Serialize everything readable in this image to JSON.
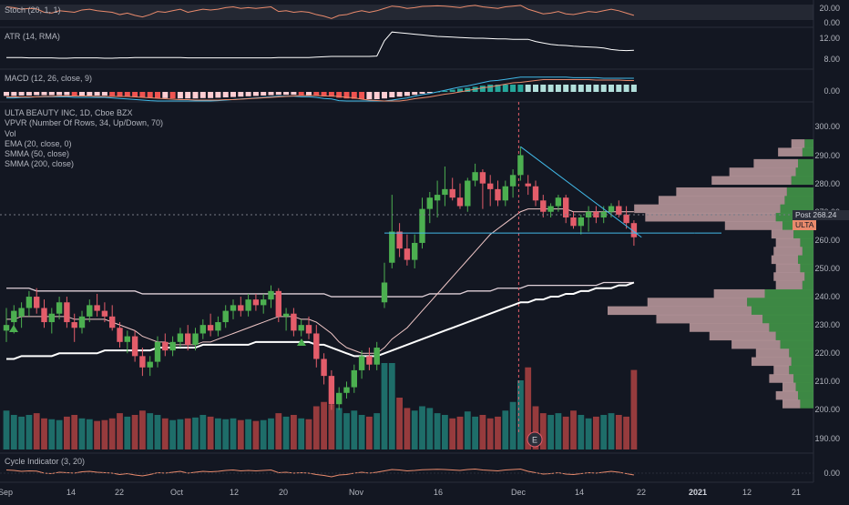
{
  "colors": {
    "background": "#131722",
    "up": "#4caf50",
    "down": "#e35d6a",
    "vol_up": "#26a69a",
    "vol_down": "#ef5350",
    "ema": "#f2c8c8",
    "smma50": "#e0d0d8",
    "smma200": "#ffffff",
    "trendline": "#41b9e8",
    "stoch": "#e98a6c",
    "macd_line": "#41b9e8",
    "signal_line": "#e98a6c",
    "cycle": "#e98a6c"
  },
  "panes": {
    "stoch": {
      "label": "Stoch (20, 1, 1)",
      "ticks": [
        "20.00",
        "0.00"
      ]
    },
    "atr": {
      "label": "ATR (14, RMA)",
      "ticks": [
        "12.00",
        "8.00"
      ]
    },
    "macd": {
      "label": "MACD (12, 26, close, 9)",
      "ticks": [
        "0.00"
      ]
    },
    "main": {
      "title": "ULTA BEAUTY INC, 1D, Cboe BZX",
      "indicators": [
        "VPVR (Number Of Rows, 34, Up/Down, 70)",
        "Vol",
        "EMA (20, close, 0)",
        "SMMA (50, close)",
        "SMMA (200, close)"
      ],
      "ticks": [
        "300.00",
        "290.00",
        "280.00",
        "270.00",
        "260.00",
        "250.00",
        "240.00",
        "230.00",
        "220.00",
        "210.00",
        "200.00",
        "190.00"
      ],
      "post_label": "Post",
      "post_value": "268.24",
      "symbol_tag": "ULTA",
      "earnings_marker": "E"
    },
    "cycle": {
      "label": "Cycle Indicator (3, 20)",
      "ticks": [
        "0.00"
      ]
    }
  },
  "x_axis": {
    "labels": [
      {
        "text": "Sep",
        "bold": false
      },
      {
        "text": "14",
        "bold": false
      },
      {
        "text": "22",
        "bold": false
      },
      {
        "text": "Oct",
        "bold": false
      },
      {
        "text": "12",
        "bold": false
      },
      {
        "text": "20",
        "bold": false
      },
      {
        "text": "Nov",
        "bold": false
      },
      {
        "text": "16",
        "bold": false
      },
      {
        "text": "Dec",
        "bold": false
      },
      {
        "text": "14",
        "bold": false
      },
      {
        "text": "22",
        "bold": false
      },
      {
        "text": "2021",
        "bold": true
      },
      {
        "text": "12",
        "bold": false
      },
      {
        "text": "21",
        "bold": false
      }
    ]
  },
  "chart_data": {
    "type": "candlestick",
    "title": "ULTA BEAUTY INC, 1D, Cboe BZX",
    "ylim": [
      186,
      304
    ],
    "candles": [
      {
        "o": 228,
        "h": 236,
        "l": 224,
        "c": 230
      },
      {
        "o": 231,
        "h": 237,
        "l": 227,
        "c": 235
      },
      {
        "o": 233,
        "h": 238,
        "l": 229,
        "c": 236
      },
      {
        "o": 236,
        "h": 242,
        "l": 233,
        "c": 240
      },
      {
        "o": 240,
        "h": 243,
        "l": 234,
        "c": 236
      },
      {
        "o": 236,
        "h": 239,
        "l": 229,
        "c": 231
      },
      {
        "o": 231,
        "h": 236,
        "l": 227,
        "c": 234
      },
      {
        "o": 234,
        "h": 240,
        "l": 232,
        "c": 238
      },
      {
        "o": 238,
        "h": 240,
        "l": 229,
        "c": 231
      },
      {
        "o": 231,
        "h": 234,
        "l": 224,
        "c": 229
      },
      {
        "o": 229,
        "h": 235,
        "l": 227,
        "c": 233
      },
      {
        "o": 233,
        "h": 239,
        "l": 231,
        "c": 237
      },
      {
        "o": 237,
        "h": 241,
        "l": 233,
        "c": 235
      },
      {
        "o": 235,
        "h": 238,
        "l": 231,
        "c": 233
      },
      {
        "o": 233,
        "h": 237,
        "l": 228,
        "c": 229
      },
      {
        "o": 229,
        "h": 231,
        "l": 222,
        "c": 224
      },
      {
        "o": 224,
        "h": 228,
        "l": 220,
        "c": 226
      },
      {
        "o": 226,
        "h": 228,
        "l": 217,
        "c": 219
      },
      {
        "o": 219,
        "h": 222,
        "l": 212,
        "c": 215
      },
      {
        "o": 215,
        "h": 219,
        "l": 212,
        "c": 217
      },
      {
        "o": 217,
        "h": 226,
        "l": 215,
        "c": 224
      },
      {
        "o": 224,
        "h": 227,
        "l": 219,
        "c": 221
      },
      {
        "o": 221,
        "h": 226,
        "l": 219,
        "c": 224
      },
      {
        "o": 224,
        "h": 229,
        "l": 222,
        "c": 227
      },
      {
        "o": 227,
        "h": 230,
        "l": 221,
        "c": 223
      },
      {
        "o": 223,
        "h": 229,
        "l": 221,
        "c": 227
      },
      {
        "o": 227,
        "h": 232,
        "l": 225,
        "c": 230
      },
      {
        "o": 230,
        "h": 234,
        "l": 226,
        "c": 228
      },
      {
        "o": 228,
        "h": 233,
        "l": 226,
        "c": 231
      },
      {
        "o": 231,
        "h": 237,
        "l": 229,
        "c": 235
      },
      {
        "o": 235,
        "h": 239,
        "l": 232,
        "c": 237
      },
      {
        "o": 237,
        "h": 240,
        "l": 233,
        "c": 235
      },
      {
        "o": 235,
        "h": 241,
        "l": 233,
        "c": 239
      },
      {
        "o": 239,
        "h": 241,
        "l": 235,
        "c": 237
      },
      {
        "o": 237,
        "h": 241,
        "l": 234,
        "c": 239
      },
      {
        "o": 239,
        "h": 244,
        "l": 236,
        "c": 242
      },
      {
        "o": 242,
        "h": 243,
        "l": 231,
        "c": 233
      },
      {
        "o": 233,
        "h": 236,
        "l": 228,
        "c": 234
      },
      {
        "o": 234,
        "h": 236,
        "l": 226,
        "c": 228
      },
      {
        "o": 228,
        "h": 232,
        "l": 226,
        "c": 230
      },
      {
        "o": 230,
        "h": 233,
        "l": 225,
        "c": 227
      },
      {
        "o": 227,
        "h": 230,
        "l": 215,
        "c": 218
      },
      {
        "o": 218,
        "h": 220,
        "l": 209,
        "c": 212
      },
      {
        "o": 212,
        "h": 214,
        "l": 200,
        "c": 202
      },
      {
        "o": 202,
        "h": 208,
        "l": 200,
        "c": 206
      },
      {
        "o": 206,
        "h": 210,
        "l": 204,
        "c": 208
      },
      {
        "o": 208,
        "h": 216,
        "l": 206,
        "c": 214
      },
      {
        "o": 214,
        "h": 221,
        "l": 211,
        "c": 219
      },
      {
        "o": 219,
        "h": 222,
        "l": 214,
        "c": 216
      },
      {
        "o": 216,
        "h": 224,
        "l": 214,
        "c": 222
      },
      {
        "o": 238,
        "h": 252,
        "l": 236,
        "c": 245
      },
      {
        "o": 252,
        "h": 276,
        "l": 250,
        "c": 263
      },
      {
        "o": 263,
        "h": 266,
        "l": 254,
        "c": 257
      },
      {
        "o": 257,
        "h": 262,
        "l": 251,
        "c": 253
      },
      {
        "o": 253,
        "h": 262,
        "l": 250,
        "c": 259
      },
      {
        "o": 259,
        "h": 275,
        "l": 257,
        "c": 271
      },
      {
        "o": 271,
        "h": 277,
        "l": 266,
        "c": 275
      },
      {
        "o": 274,
        "h": 281,
        "l": 268,
        "c": 276
      },
      {
        "o": 276,
        "h": 286,
        "l": 272,
        "c": 278
      },
      {
        "o": 278,
        "h": 282,
        "l": 274,
        "c": 275
      },
      {
        "o": 275,
        "h": 280,
        "l": 271,
        "c": 272
      },
      {
        "o": 272,
        "h": 282,
        "l": 270,
        "c": 281
      },
      {
        "o": 281,
        "h": 287,
        "l": 279,
        "c": 284
      },
      {
        "o": 284,
        "h": 285,
        "l": 271,
        "c": 280
      },
      {
        "o": 280,
        "h": 283,
        "l": 272,
        "c": 278
      },
      {
        "o": 278,
        "h": 281,
        "l": 272,
        "c": 274
      },
      {
        "o": 274,
        "h": 281,
        "l": 272,
        "c": 279
      },
      {
        "o": 279,
        "h": 285,
        "l": 275,
        "c": 283
      },
      {
        "o": 283,
        "h": 293,
        "l": 281,
        "c": 290
      },
      {
        "o": 280,
        "h": 283,
        "l": 276,
        "c": 279
      },
      {
        "o": 279,
        "h": 281,
        "l": 272,
        "c": 274
      },
      {
        "o": 274,
        "h": 276,
        "l": 268,
        "c": 270
      },
      {
        "o": 270,
        "h": 273,
        "l": 268,
        "c": 272
      },
      {
        "o": 272,
        "h": 276,
        "l": 270,
        "c": 275
      },
      {
        "o": 275,
        "h": 276,
        "l": 266,
        "c": 268
      },
      {
        "o": 268,
        "h": 270,
        "l": 264,
        "c": 265
      },
      {
        "o": 265,
        "h": 269,
        "l": 262,
        "c": 268
      },
      {
        "o": 268,
        "h": 272,
        "l": 263,
        "c": 270
      },
      {
        "o": 270,
        "h": 272,
        "l": 266,
        "c": 268
      },
      {
        "o": 268,
        "h": 272,
        "l": 266,
        "c": 270
      },
      {
        "o": 270,
        "h": 273,
        "l": 268,
        "c": 272
      },
      {
        "o": 272,
        "h": 274,
        "l": 268,
        "c": 269
      },
      {
        "o": 269,
        "h": 272,
        "l": 264,
        "c": 266
      },
      {
        "o": 266,
        "h": 267,
        "l": 258,
        "c": 261
      }
    ],
    "ema20": [
      232,
      232,
      233,
      233,
      233,
      233,
      233,
      233,
      233,
      232,
      232,
      232,
      232,
      232,
      231,
      230,
      229,
      228,
      226,
      225,
      224,
      224,
      223,
      223,
      223,
      223,
      224,
      224,
      225,
      226,
      227,
      228,
      229,
      230,
      231,
      232,
      233,
      233,
      233,
      232,
      232,
      231,
      229,
      227,
      224,
      222,
      221,
      220,
      220,
      220,
      222,
      225,
      227,
      229,
      232,
      235,
      238,
      241,
      244,
      247,
      250,
      253,
      256,
      259,
      262,
      264,
      266,
      268,
      270,
      271,
      271,
      271,
      271,
      271,
      271,
      270,
      270,
      270,
      270,
      270,
      270,
      270,
      270,
      270
    ],
    "smma50": [
      243,
      243,
      243,
      243,
      242,
      242,
      242,
      242,
      242,
      242,
      242,
      242,
      242,
      242,
      242,
      242,
      242,
      242,
      241,
      241,
      241,
      241,
      241,
      241,
      241,
      241,
      241,
      241,
      241,
      241,
      241,
      241,
      241,
      241,
      241,
      241,
      241,
      241,
      241,
      241,
      241,
      241,
      241,
      240,
      240,
      240,
      240,
      240,
      240,
      240,
      240,
      240,
      240,
      240,
      240,
      240,
      241,
      241,
      241,
      241,
      241,
      242,
      242,
      242,
      242,
      243,
      243,
      243,
      243,
      244,
      244,
      244,
      244,
      244,
      244,
      244,
      244,
      244,
      244,
      245,
      245,
      245,
      245,
      245
    ],
    "smma200": [
      218,
      218,
      219,
      219,
      219,
      219,
      219,
      220,
      220,
      220,
      220,
      220,
      220,
      221,
      221,
      221,
      221,
      221,
      221,
      221,
      222,
      222,
      222,
      222,
      222,
      222,
      223,
      223,
      223,
      223,
      223,
      223,
      223,
      224,
      224,
      224,
      224,
      224,
      224,
      224,
      224,
      223,
      223,
      222,
      221,
      220,
      219,
      219,
      219,
      219,
      220,
      221,
      222,
      223,
      224,
      225,
      226,
      227,
      228,
      229,
      230,
      231,
      232,
      233,
      234,
      235,
      236,
      237,
      238,
      238,
      239,
      239,
      240,
      240,
      241,
      241,
      242,
      242,
      243,
      243,
      243,
      244,
      244,
      245
    ],
    "volume_relative": [
      0.45,
      0.4,
      0.38,
      0.4,
      0.42,
      0.36,
      0.35,
      0.34,
      0.38,
      0.4,
      0.36,
      0.35,
      0.33,
      0.34,
      0.36,
      0.42,
      0.38,
      0.4,
      0.45,
      0.42,
      0.4,
      0.36,
      0.34,
      0.35,
      0.36,
      0.37,
      0.4,
      0.38,
      0.36,
      0.35,
      0.36,
      0.34,
      0.35,
      0.33,
      0.34,
      0.36,
      0.42,
      0.38,
      0.4,
      0.36,
      0.35,
      0.5,
      0.55,
      0.52,
      0.48,
      0.42,
      0.45,
      0.4,
      0.38,
      0.42,
      1.0,
      1.0,
      0.6,
      0.48,
      0.45,
      0.5,
      0.48,
      0.42,
      0.4,
      0.36,
      0.38,
      0.44,
      0.38,
      0.4,
      0.36,
      0.38,
      0.45,
      0.55,
      0.8,
      0.95,
      0.5,
      0.42,
      0.4,
      0.42,
      0.38,
      0.45,
      0.4,
      0.36,
      0.38,
      0.4,
      0.42,
      0.4,
      0.38,
      0.92
    ],
    "trendlines": [
      {
        "from": [
          68,
          293
        ],
        "to": [
          84,
          261
        ]
      },
      {
        "from": [
          50,
          262.5
        ],
        "to": [
          91,
          262.5
        ]
      }
    ],
    "volume_profile": [
      {
        "price": 294,
        "up": 8,
        "down": 12
      },
      {
        "price": 291,
        "up": 10,
        "down": 22
      },
      {
        "price": 287,
        "up": 14,
        "down": 40
      },
      {
        "price": 284,
        "up": 16,
        "down": 60
      },
      {
        "price": 281,
        "up": 20,
        "down": 72
      },
      {
        "price": 277,
        "up": 24,
        "down": 100
      },
      {
        "price": 274,
        "up": 26,
        "down": 114
      },
      {
        "price": 271,
        "up": 30,
        "down": 132
      },
      {
        "price": 268,
        "up": 34,
        "down": 118
      },
      {
        "price": 265,
        "up": 28,
        "down": 52
      },
      {
        "price": 262,
        "up": 18,
        "down": 20
      },
      {
        "price": 259,
        "up": 12,
        "down": 22
      },
      {
        "price": 256,
        "up": 10,
        "down": 26
      },
      {
        "price": 253,
        "up": 14,
        "down": 24
      },
      {
        "price": 250,
        "up": 12,
        "down": 22
      },
      {
        "price": 247,
        "up": 8,
        "down": 28
      },
      {
        "price": 244,
        "up": 10,
        "down": 24
      },
      {
        "price": 241,
        "up": 44,
        "down": 46
      },
      {
        "price": 238,
        "up": 60,
        "down": 90
      },
      {
        "price": 235,
        "up": 56,
        "down": 130
      },
      {
        "price": 232,
        "up": 46,
        "down": 96
      },
      {
        "price": 229,
        "up": 40,
        "down": 72
      },
      {
        "price": 226,
        "up": 34,
        "down": 60
      },
      {
        "price": 223,
        "up": 30,
        "down": 44
      },
      {
        "price": 220,
        "up": 22,
        "down": 30
      },
      {
        "price": 217,
        "up": 20,
        "down": 36
      },
      {
        "price": 214,
        "up": 22,
        "down": 14
      },
      {
        "price": 211,
        "up": 18,
        "down": 22
      },
      {
        "price": 208,
        "up": 16,
        "down": 12
      },
      {
        "price": 205,
        "up": 14,
        "down": 20
      },
      {
        "price": 202,
        "up": 12,
        "down": 16
      }
    ],
    "stoch": [
      0.85,
      0.8,
      0.7,
      0.75,
      0.72,
      0.5,
      0.45,
      0.6,
      0.55,
      0.5,
      0.65,
      0.7,
      0.6,
      0.55,
      0.5,
      0.35,
      0.45,
      0.3,
      0.2,
      0.35,
      0.55,
      0.5,
      0.6,
      0.7,
      0.5,
      0.6,
      0.7,
      0.65,
      0.7,
      0.8,
      0.85,
      0.75,
      0.8,
      0.75,
      0.8,
      0.85,
      0.55,
      0.6,
      0.5,
      0.55,
      0.5,
      0.35,
      0.25,
      0.1,
      0.3,
      0.35,
      0.5,
      0.6,
      0.5,
      0.6,
      0.75,
      0.9,
      0.85,
      0.75,
      0.8,
      0.88,
      0.9,
      0.92,
      0.9,
      0.85,
      0.8,
      0.9,
      0.95,
      0.85,
      0.8,
      0.75,
      0.85,
      0.9,
      0.95,
      0.7,
      0.55,
      0.4,
      0.45,
      0.55,
      0.4,
      0.35,
      0.45,
      0.55,
      0.5,
      0.6,
      0.7,
      0.6,
      0.45,
      0.3
    ],
    "atr": [
      0.22,
      0.22,
      0.22,
      0.21,
      0.21,
      0.21,
      0.21,
      0.2,
      0.2,
      0.21,
      0.21,
      0.21,
      0.21,
      0.2,
      0.2,
      0.21,
      0.21,
      0.22,
      0.22,
      0.22,
      0.22,
      0.22,
      0.22,
      0.22,
      0.21,
      0.21,
      0.21,
      0.21,
      0.21,
      0.21,
      0.21,
      0.21,
      0.21,
      0.21,
      0.21,
      0.21,
      0.22,
      0.22,
      0.22,
      0.22,
      0.22,
      0.23,
      0.24,
      0.25,
      0.25,
      0.25,
      0.25,
      0.25,
      0.25,
      0.26,
      0.68,
      0.92,
      0.9,
      0.88,
      0.86,
      0.84,
      0.82,
      0.8,
      0.79,
      0.78,
      0.77,
      0.76,
      0.75,
      0.75,
      0.74,
      0.73,
      0.73,
      0.72,
      0.72,
      0.72,
      0.66,
      0.62,
      0.58,
      0.56,
      0.55,
      0.53,
      0.52,
      0.51,
      0.5,
      0.48,
      0.44,
      0.42,
      0.41,
      0.42
    ]
  }
}
